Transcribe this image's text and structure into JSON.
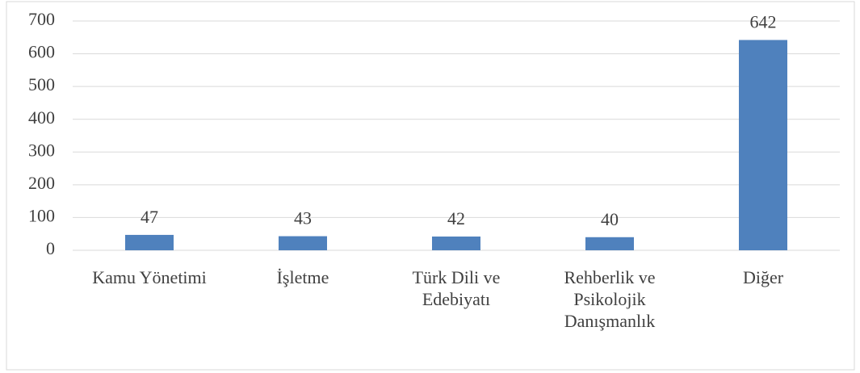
{
  "chart_data": {
    "type": "bar",
    "categories": [
      "Kamu Yönetimi",
      "İşletme",
      "Türk Dili ve Edebiyatı",
      "Rehberlik ve Psikolojik Danışmanlık",
      "Diğer"
    ],
    "values": [
      47,
      43,
      42,
      40,
      642
    ],
    "color": "#4f81bd",
    "ylim": [
      0,
      700
    ],
    "yticks": [
      0,
      100,
      200,
      300,
      400,
      500,
      600,
      700
    ],
    "grid": true
  }
}
